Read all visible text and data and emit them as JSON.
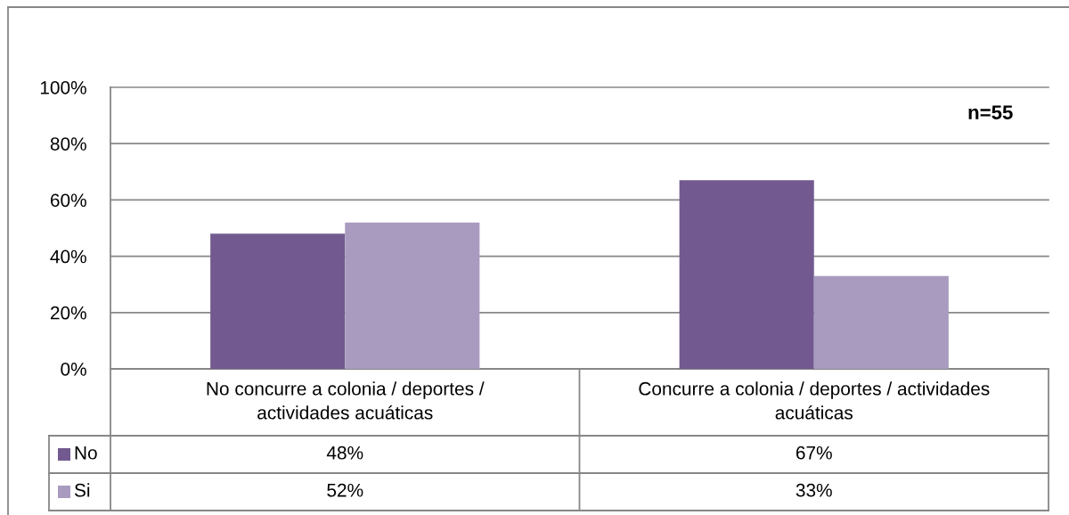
{
  "chart_data": {
    "type": "bar",
    "categories": [
      "No concurre a colonia / deportes / actividades acuáticas",
      "Concurre a colonia / deportes / actividades acuáticas"
    ],
    "series": [
      {
        "name": "No",
        "color": "#725a90",
        "values": [
          48,
          67
        ],
        "value_labels": [
          "48%",
          "67%"
        ]
      },
      {
        "name": "Si",
        "color": "#a99bbf",
        "values": [
          52,
          33
        ],
        "value_labels": [
          "52%",
          "33%"
        ]
      }
    ],
    "ylim": [
      0,
      100
    ],
    "yticks": [
      {
        "value": 0,
        "label": "0%"
      },
      {
        "value": 20,
        "label": "20%"
      },
      {
        "value": 40,
        "label": "40%"
      },
      {
        "value": 60,
        "label": "60%"
      },
      {
        "value": 80,
        "label": "80%"
      },
      {
        "value": 100,
        "label": "100%"
      }
    ],
    "grid": "y",
    "legend": "bottom left",
    "annotations": [
      "n=55"
    ]
  }
}
